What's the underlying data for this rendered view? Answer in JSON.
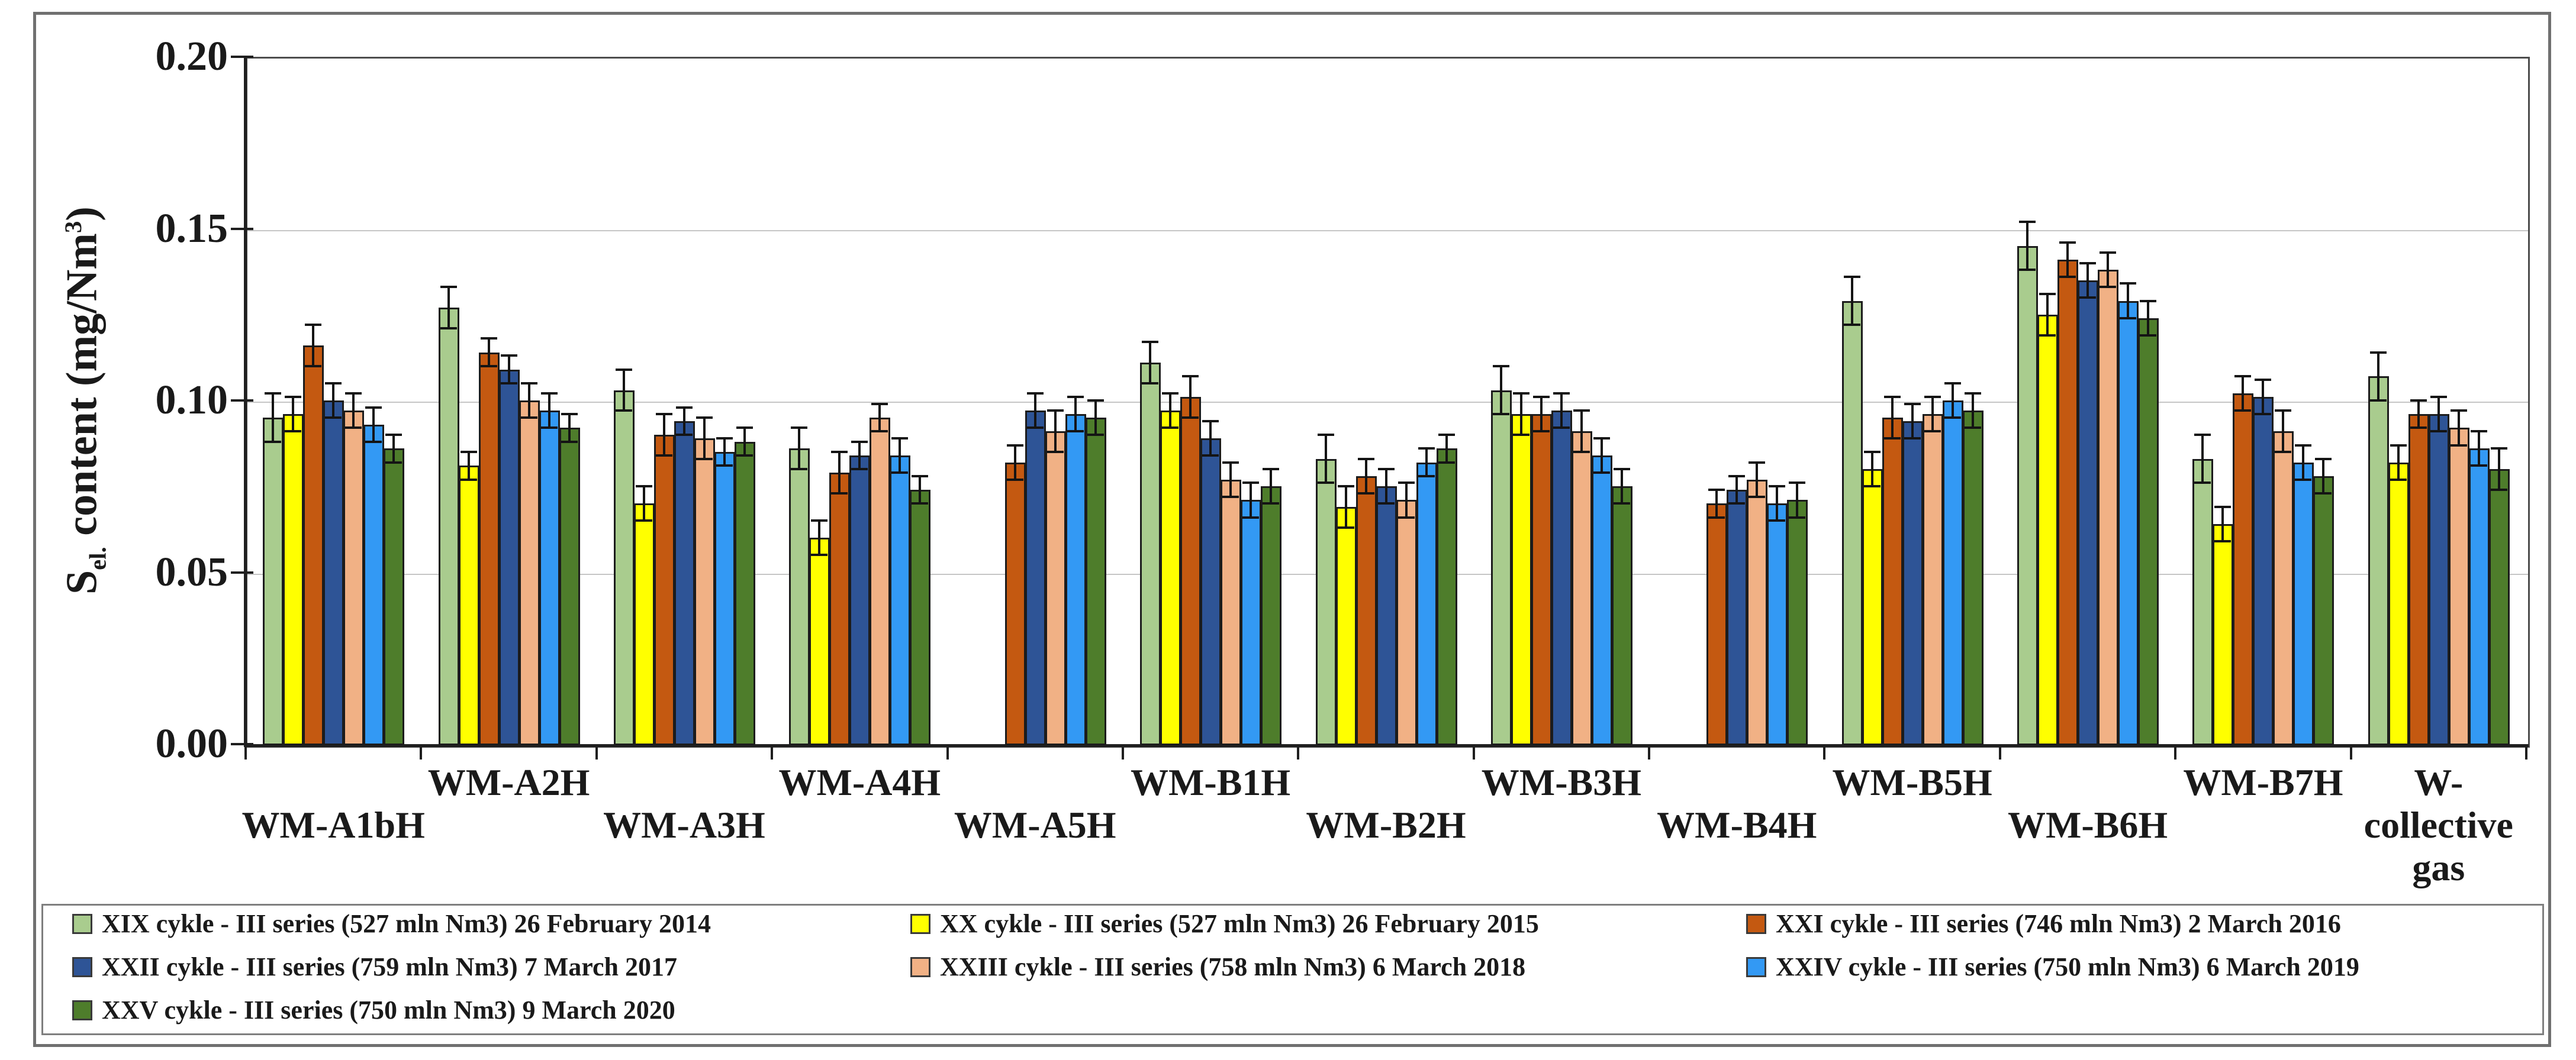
{
  "figure": {
    "background": "#ffffff",
    "outer_border_color": "#707070",
    "plot_frame_color": "#4d4d4d",
    "axis_color": "#1f1f1f",
    "gridline_color": "#c6c6c6"
  },
  "chart_data": {
    "type": "bar",
    "title": "",
    "xlabel": "",
    "ylabel": "Sel. content (mg/Nm3)",
    "ylabel_parts": {
      "prefix": "S",
      "sub": "el.",
      "mid": " content (mg/Nm",
      "sup": "3",
      "suffix": ")"
    },
    "ylim": [
      0,
      0.2
    ],
    "ytick_step": 0.05,
    "yticks": [
      "0.00",
      "0.05",
      "0.10",
      "0.15",
      "0.20"
    ],
    "grid": "horizontal",
    "error_bars": true,
    "legend_position": "bottom",
    "legend_columns": 3,
    "categories": [
      "WM-A1bH",
      "WM-A2H",
      "WM-A3H",
      "WM-A4H",
      "WM-A5H",
      "WM-B1H",
      "WM-B2H",
      "WM-B3H",
      "WM-B4H",
      "WM-B5H",
      "WM-B6H",
      "WM-B7H",
      "W-collective gas"
    ],
    "last_category_label_lines": [
      "W-",
      "collective",
      "gas"
    ],
    "series": [
      {
        "name": "XIX cykle - III series (527 mln Nm3) 26 February 2014",
        "color": "#a9cc8e",
        "values": [
          0.095,
          0.127,
          0.103,
          0.086,
          null,
          0.111,
          0.083,
          0.103,
          null,
          0.129,
          0.145,
          0.083,
          0.107
        ],
        "errors": [
          0.007,
          0.006,
          0.006,
          0.006,
          null,
          0.006,
          0.007,
          0.007,
          null,
          0.007,
          0.007,
          0.007,
          0.007
        ]
      },
      {
        "name": "XX cykle - III series (527 mln Nm3) 26 February 2015",
        "color": "#ffff00",
        "values": [
          0.096,
          0.081,
          0.07,
          0.06,
          null,
          0.097,
          0.069,
          0.096,
          null,
          0.08,
          0.125,
          0.064,
          0.082
        ],
        "errors": [
          0.005,
          0.004,
          0.005,
          0.005,
          null,
          0.005,
          0.006,
          0.006,
          null,
          0.005,
          0.006,
          0.005,
          0.005
        ]
      },
      {
        "name": "XXI cykle - III series (746 mln Nm3) 2 March 2016",
        "color": "#c45911",
        "values": [
          0.116,
          0.114,
          0.09,
          0.079,
          0.082,
          0.101,
          0.078,
          0.096,
          0.07,
          0.095,
          0.141,
          0.102,
          0.096
        ],
        "errors": [
          0.006,
          0.004,
          0.006,
          0.006,
          0.005,
          0.006,
          0.005,
          0.005,
          0.004,
          0.006,
          0.005,
          0.005,
          0.004
        ]
      },
      {
        "name": "XXII cykle - III series (759 mln Nm3) 7 March 2017",
        "color": "#2e5496",
        "values": [
          0.1,
          0.109,
          0.094,
          0.084,
          0.097,
          0.089,
          0.075,
          0.097,
          0.074,
          0.094,
          0.135,
          0.101,
          0.096
        ],
        "errors": [
          0.005,
          0.004,
          0.004,
          0.004,
          0.005,
          0.005,
          0.005,
          0.005,
          0.004,
          0.005,
          0.005,
          0.005,
          0.005
        ]
      },
      {
        "name": "XXIII cykle - III series (758 mln Nm3) 6 March 2018",
        "color": "#f1b185",
        "values": [
          0.097,
          0.1,
          0.089,
          0.095,
          0.091,
          0.077,
          0.071,
          0.091,
          0.077,
          0.096,
          0.138,
          0.091,
          0.092
        ],
        "errors": [
          0.005,
          0.005,
          0.006,
          0.004,
          0.006,
          0.005,
          0.005,
          0.006,
          0.005,
          0.005,
          0.005,
          0.006,
          0.005
        ]
      },
      {
        "name": "XXIV cykle - III series (750 mln Nm3) 6 March 2019",
        "color": "#3399f4",
        "values": [
          0.093,
          0.097,
          0.085,
          0.084,
          0.096,
          0.071,
          0.082,
          0.084,
          0.07,
          0.1,
          0.129,
          0.082,
          0.086
        ],
        "errors": [
          0.005,
          0.005,
          0.004,
          0.005,
          0.005,
          0.005,
          0.004,
          0.005,
          0.005,
          0.005,
          0.005,
          0.005,
          0.005
        ]
      },
      {
        "name": "XXV cykle - III series (750 mln Nm3) 9 March 2020",
        "color": "#4e7d2b",
        "values": [
          0.086,
          0.092,
          0.088,
          0.074,
          0.095,
          0.075,
          0.086,
          0.075,
          0.071,
          0.097,
          0.124,
          0.078,
          0.08
        ],
        "errors": [
          0.004,
          0.004,
          0.004,
          0.004,
          0.005,
          0.005,
          0.004,
          0.005,
          0.005,
          0.005,
          0.005,
          0.005,
          0.006
        ]
      }
    ]
  }
}
